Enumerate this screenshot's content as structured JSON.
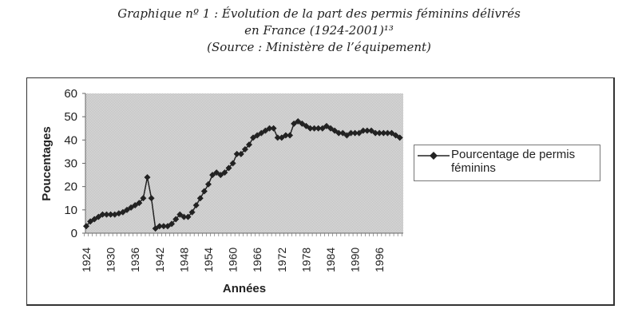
{
  "header": {
    "line1": "Graphique nº 1 : Évolution de la part des permis féminins délivrés",
    "line2": "en France (1924-2001)¹³",
    "line3": "(Source : Ministère de l’équipement)"
  },
  "chart_data": {
    "type": "line",
    "title": "Évolution de la part des permis féminins délivrés en France (1924-2001)",
    "xlabel": "Années",
    "ylabel": "Poucentages",
    "ylim": [
      0,
      60
    ],
    "xlim": [
      1924,
      2001
    ],
    "yticks": [
      0,
      10,
      20,
      30,
      40,
      50,
      60
    ],
    "xticks": [
      1924,
      1930,
      1936,
      1942,
      1948,
      1954,
      1960,
      1966,
      1972,
      1978,
      1984,
      1990,
      1996
    ],
    "legend_position": "right",
    "grid": false,
    "series": [
      {
        "name": "Pourcentage de permis féminins",
        "marker": "diamond",
        "color": "#222222",
        "x_start": 1924,
        "values": [
          3,
          5,
          6,
          7,
          8,
          8,
          8,
          8,
          8.5,
          9,
          10,
          11,
          12,
          13,
          15,
          24,
          15,
          2,
          3,
          3,
          3,
          4,
          6,
          8,
          7,
          7,
          9,
          12,
          15,
          18,
          21,
          25,
          26,
          25,
          26,
          28,
          30,
          34,
          34,
          36,
          38,
          41,
          42,
          43,
          44,
          45,
          45,
          41,
          41,
          42,
          42,
          47,
          48,
          47,
          46,
          45,
          45,
          45,
          45,
          46,
          45,
          44,
          43,
          43,
          42,
          43,
          43,
          43,
          44,
          44,
          44,
          43,
          43,
          43,
          43,
          43,
          42,
          41
        ]
      }
    ]
  }
}
